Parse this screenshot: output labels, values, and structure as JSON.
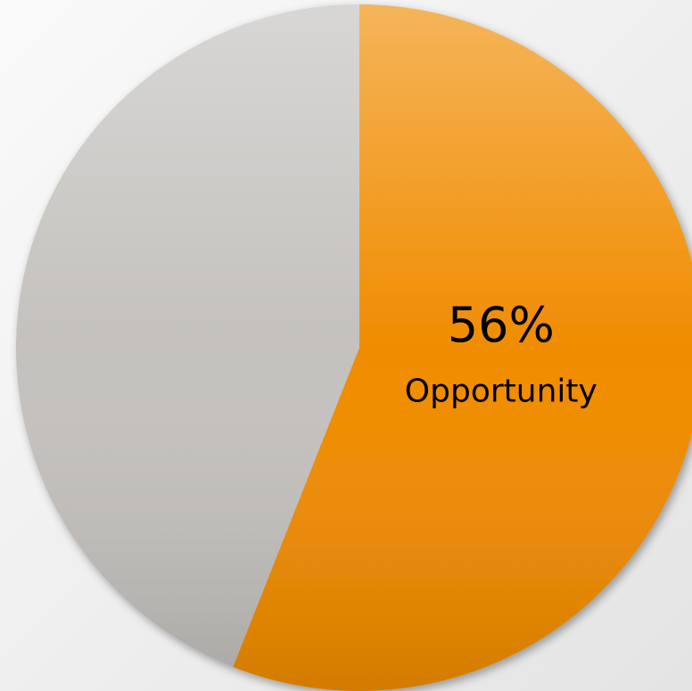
{
  "chart_data": {
    "type": "pie",
    "categories": [
      "Opportunity",
      null
    ],
    "values": [
      56,
      44
    ],
    "value_labels": [
      "56%",
      null
    ],
    "colors": [
      "#f08c00",
      "#c4c1be"
    ]
  }
}
